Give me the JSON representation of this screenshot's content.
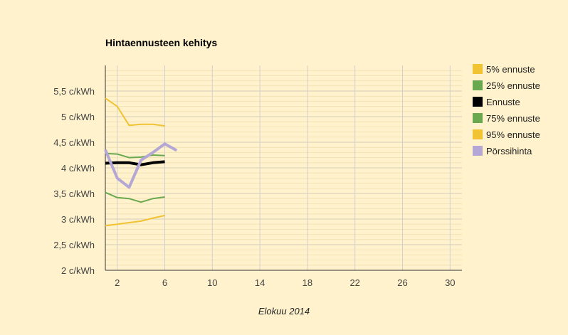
{
  "chart_data": {
    "type": "line",
    "title": "Hintaennusteen kehitys",
    "xlabel": "Elokuu 2014",
    "ylabel": "",
    "xlim": [
      1,
      31
    ],
    "ylim": [
      2,
      6
    ],
    "x_ticks": [
      2,
      6,
      10,
      14,
      18,
      22,
      26,
      30
    ],
    "y_ticks": [
      2,
      2.5,
      3,
      3.5,
      4,
      4.5,
      5,
      5.5
    ],
    "y_tick_labels": [
      "2 c/kWh",
      "2,5 c/kWh",
      "3 c/kWh",
      "3,5 c/kWh",
      "4 c/kWh",
      "4,5 c/kWh",
      "5 c/kWh",
      "5,5 c/kWh"
    ],
    "grid": true,
    "legend_position": "right",
    "series": [
      {
        "name": "5% ennuste",
        "color": "#f1c232",
        "width": 2,
        "x": [
          1,
          2,
          3,
          4,
          5,
          6
        ],
        "y": [
          2.87,
          2.9,
          2.93,
          2.96,
          3.02,
          3.07
        ]
      },
      {
        "name": "25% ennuste",
        "color": "#6aa84f",
        "width": 2,
        "x": [
          1,
          2,
          3,
          4,
          5,
          6
        ],
        "y": [
          3.52,
          3.42,
          3.4,
          3.33,
          3.4,
          3.43
        ]
      },
      {
        "name": "Ennuste",
        "color": "#000000",
        "width": 4,
        "x": [
          1,
          2,
          3,
          4,
          5,
          6
        ],
        "y": [
          4.09,
          4.1,
          4.1,
          4.06,
          4.1,
          4.12
        ]
      },
      {
        "name": "75% ennuste",
        "color": "#6aa84f",
        "width": 2,
        "x": [
          1,
          2,
          3,
          4,
          5,
          6
        ],
        "y": [
          4.28,
          4.27,
          4.2,
          4.21,
          4.25,
          4.24
        ]
      },
      {
        "name": "95% ennuste",
        "color": "#f1c232",
        "width": 2,
        "x": [
          1,
          2,
          3,
          4,
          5,
          6
        ],
        "y": [
          5.36,
          5.2,
          4.83,
          4.85,
          4.85,
          4.82
        ]
      },
      {
        "name": "Pörssihinta",
        "color": "#b4a7d6",
        "width": 4,
        "x": [
          1,
          2,
          3,
          4,
          5,
          6,
          7
        ],
        "y": [
          4.35,
          3.8,
          3.62,
          4.15,
          4.3,
          4.47,
          4.34
        ]
      }
    ]
  }
}
